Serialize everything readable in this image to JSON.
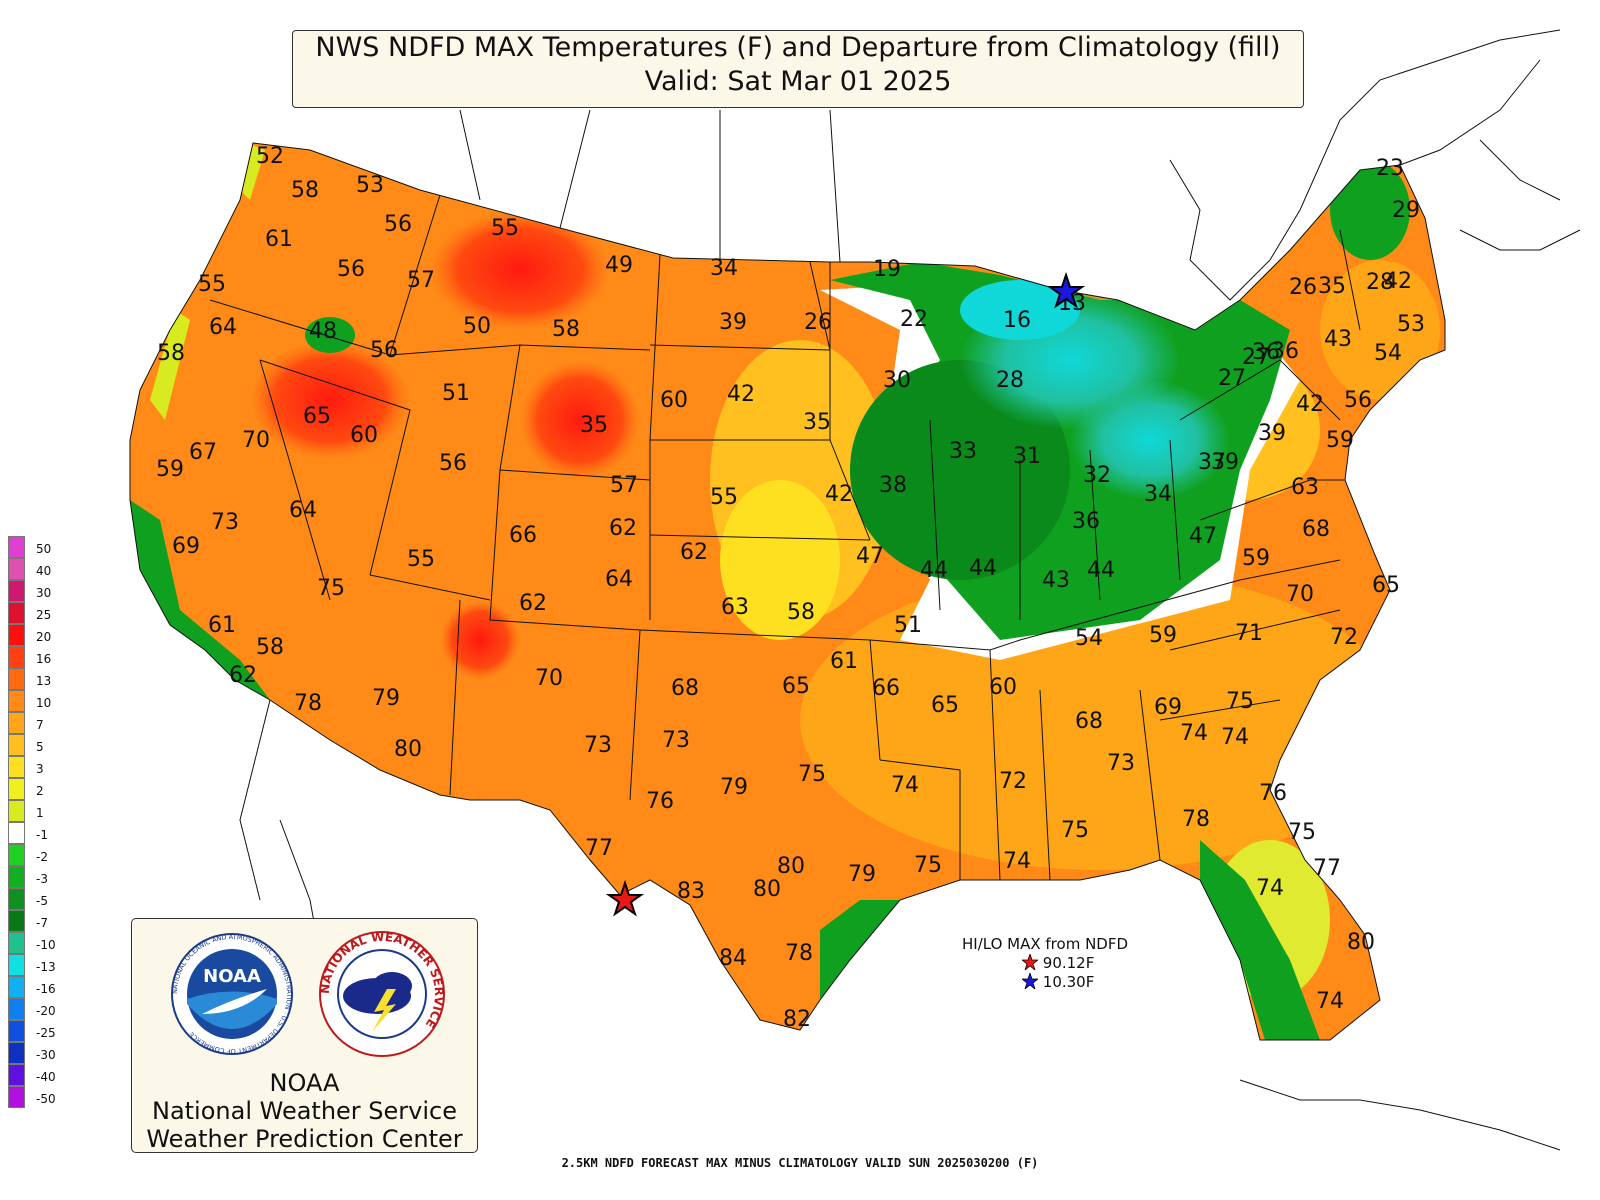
{
  "title": {
    "line1": "NWS NDFD MAX Temperatures (F) and Departure from Climatology (fill)",
    "line2": "Valid: Sat Mar 01 2025"
  },
  "legend": {
    "items": [
      {
        "label": "50",
        "color": "#e040d0"
      },
      {
        "label": "40",
        "color": "#e050b0"
      },
      {
        "label": "30",
        "color": "#d01870"
      },
      {
        "label": "25",
        "color": "#e01030"
      },
      {
        "label": "20",
        "color": "#ff1010"
      },
      {
        "label": "16",
        "color": "#ff4010"
      },
      {
        "label": "13",
        "color": "#ff6a10"
      },
      {
        "label": "10",
        "color": "#ff8a18"
      },
      {
        "label": "7",
        "color": "#ffa518"
      },
      {
        "label": "5",
        "color": "#ffc020"
      },
      {
        "label": "3",
        "color": "#ffe020"
      },
      {
        "label": "2",
        "color": "#f0f020"
      },
      {
        "label": "1",
        "color": "#d8ea20"
      },
      {
        "label": "-1",
        "color": "#ffffff"
      },
      {
        "label": "-2",
        "color": "#20d020"
      },
      {
        "label": "-3",
        "color": "#10b020"
      },
      {
        "label": "-5",
        "color": "#109020"
      },
      {
        "label": "-7",
        "color": "#087818"
      },
      {
        "label": "-10",
        "color": "#20c090"
      },
      {
        "label": "-13",
        "color": "#10e0e0"
      },
      {
        "label": "-16",
        "color": "#10b0f0"
      },
      {
        "label": "-20",
        "color": "#1080f0"
      },
      {
        "label": "-25",
        "color": "#1050e0"
      },
      {
        "label": "-30",
        "color": "#1030c0"
      },
      {
        "label": "-40",
        "color": "#6010e0"
      },
      {
        "label": "-50",
        "color": "#b010e0"
      }
    ]
  },
  "logo": {
    "noaa_seal_text": "NATIONAL OCEANIC AND ATMOSPHERIC ADMINISTRATION · U.S. DEPARTMENT OF COMMERCE",
    "noaa_word": "NOAA",
    "nws_seal_text": "NATIONAL WEATHER SERVICE",
    "line1": "NOAA",
    "line2": "National Weather Service",
    "line3": "Weather Prediction Center"
  },
  "hilo": {
    "title": "HI/LO MAX from NDFD",
    "hi": "90.12F",
    "lo": "10.30F",
    "hi_color": "#e81818",
    "lo_color": "#1818e0"
  },
  "footer": "2.5KM NDFD FORECAST MAX MINUS CLIMATOLOGY VALID SUN 2025030200 (F)",
  "temperatures": [
    "52",
    "58",
    "53",
    "56",
    "55",
    "61",
    "49",
    "34",
    "55",
    "56",
    "57",
    "19",
    "48",
    "50",
    "58",
    "39",
    "26",
    "22",
    "16",
    "13",
    "64",
    "58",
    "56",
    "51",
    "42",
    "30",
    "28",
    "35",
    "65",
    "60",
    "70",
    "67",
    "59",
    "60",
    "35",
    "26",
    "28",
    "27",
    "33",
    "31",
    "56",
    "57",
    "55",
    "42",
    "38",
    "32",
    "36",
    "34",
    "37",
    "73",
    "64",
    "66",
    "62",
    "69",
    "62",
    "39",
    "36",
    "44",
    "44",
    "47",
    "43",
    "44",
    "47",
    "55",
    "75",
    "62",
    "64",
    "63",
    "58",
    "51",
    "54",
    "59",
    "61",
    "58",
    "61",
    "79",
    "70",
    "68",
    "65",
    "66",
    "65",
    "60",
    "80",
    "78",
    "62",
    "73",
    "73",
    "76",
    "79",
    "75",
    "74",
    "72",
    "77",
    "83",
    "80",
    "80",
    "79",
    "75",
    "74",
    "75",
    "84",
    "78",
    "82",
    "35",
    "42",
    "43",
    "53",
    "54",
    "27",
    "36",
    "42",
    "56",
    "39",
    "59",
    "63",
    "68",
    "59",
    "70",
    "65",
    "71",
    "72",
    "69",
    "75",
    "74",
    "68",
    "73",
    "74",
    "78",
    "76",
    "75",
    "77",
    "74",
    "80",
    "74",
    "23",
    "29"
  ]
}
